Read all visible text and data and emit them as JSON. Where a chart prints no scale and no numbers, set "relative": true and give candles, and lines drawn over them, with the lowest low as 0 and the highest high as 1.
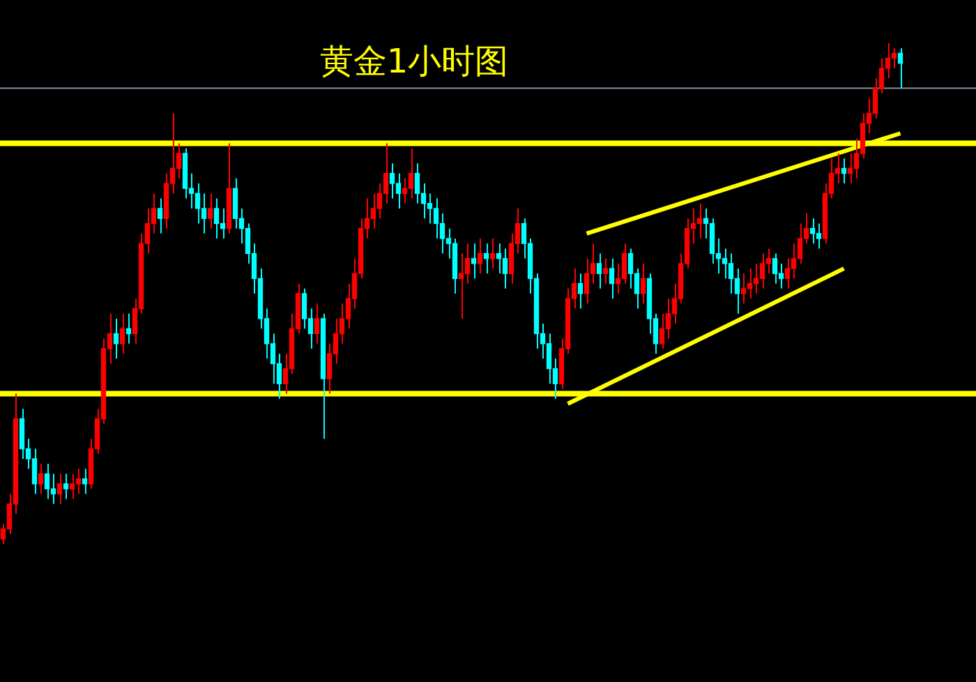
{
  "chart_data": {
    "type": "candlestick",
    "title": "黄金1小时图",
    "relative": true,
    "categories": [
      null,
      null,
      null,
      null,
      null,
      null,
      null,
      null,
      null,
      null,
      null,
      null,
      null,
      null,
      null,
      null,
      null,
      null,
      null,
      null,
      null,
      null,
      null,
      null,
      null,
      null,
      null,
      null,
      null,
      null,
      null,
      null,
      null,
      null,
      null,
      null,
      null,
      null,
      null,
      null,
      null,
      null,
      null,
      null,
      null,
      null,
      null,
      null,
      null,
      null,
      null,
      null,
      null,
      null,
      null,
      null,
      null,
      null,
      null,
      null,
      null,
      null,
      null,
      null,
      null,
      null,
      null,
      null,
      null,
      null,
      null,
      null,
      null,
      null,
      null,
      null,
      null,
      null,
      null,
      null,
      null,
      null,
      null,
      null,
      null,
      null,
      null,
      null,
      null,
      null,
      null,
      null,
      null,
      null,
      null,
      null,
      null,
      null,
      null,
      null,
      null,
      null,
      null,
      null,
      null,
      null,
      null,
      null,
      null,
      null,
      null,
      null,
      null,
      null,
      null,
      null,
      null,
      null,
      null,
      null,
      null,
      null,
      null,
      null,
      null,
      null,
      null,
      null,
      null,
      null,
      null,
      null,
      null,
      null,
      null,
      null,
      null,
      null,
      null,
      null,
      null,
      null,
      null,
      null
    ],
    "ohlc": [
      [
        0.01,
        0.04,
        0,
        0.03
      ],
      [
        0.03,
        0.1,
        0.02,
        0.08
      ],
      [
        0.08,
        0.3,
        0.06,
        0.25
      ],
      [
        0.25,
        0.27,
        0.17,
        0.19
      ],
      [
        0.19,
        0.21,
        0.15,
        0.17
      ],
      [
        0.17,
        0.19,
        0.1,
        0.12
      ],
      [
        0.12,
        0.16,
        0.1,
        0.14
      ],
      [
        0.14,
        0.16,
        0.09,
        0.11
      ],
      [
        0.11,
        0.14,
        0.08,
        0.1
      ],
      [
        0.1,
        0.14,
        0.08,
        0.12
      ],
      [
        0.12,
        0.14,
        0.09,
        0.11
      ],
      [
        0.11,
        0.14,
        0.09,
        0.12
      ],
      [
        0.12,
        0.15,
        0.1,
        0.13
      ],
      [
        0.13,
        0.15,
        0.1,
        0.12
      ],
      [
        0.12,
        0.21,
        0.11,
        0.19
      ],
      [
        0.19,
        0.27,
        0.18,
        0.25
      ],
      [
        0.25,
        0.41,
        0.24,
        0.39
      ],
      [
        0.39,
        0.46,
        0.36,
        0.42
      ],
      [
        0.42,
        0.45,
        0.37,
        0.4
      ],
      [
        0.4,
        0.46,
        0.38,
        0.43
      ],
      [
        0.43,
        0.46,
        0.4,
        0.42
      ],
      [
        0.42,
        0.49,
        0.4,
        0.47
      ],
      [
        0.47,
        0.62,
        0.46,
        0.6
      ],
      [
        0.6,
        0.67,
        0.58,
        0.64
      ],
      [
        0.64,
        0.7,
        0.62,
        0.67
      ],
      [
        0.67,
        0.69,
        0.62,
        0.65
      ],
      [
        0.65,
        0.74,
        0.63,
        0.72
      ],
      [
        0.72,
        0.86,
        0.7,
        0.75
      ],
      [
        0.75,
        0.8,
        0.73,
        0.78
      ],
      [
        0.78,
        0.79,
        0.69,
        0.71
      ],
      [
        0.71,
        0.74,
        0.67,
        0.7
      ],
      [
        0.7,
        0.72,
        0.64,
        0.67
      ],
      [
        0.67,
        0.7,
        0.62,
        0.65
      ],
      [
        0.65,
        0.7,
        0.63,
        0.67
      ],
      [
        0.67,
        0.69,
        0.61,
        0.64
      ],
      [
        0.64,
        0.67,
        0.61,
        0.63
      ],
      [
        0.63,
        0.8,
        0.62,
        0.71
      ],
      [
        0.71,
        0.73,
        0.63,
        0.65
      ],
      [
        0.65,
        0.67,
        0.6,
        0.63
      ],
      [
        0.63,
        0.64,
        0.56,
        0.58
      ],
      [
        0.58,
        0.6,
        0.5,
        0.53
      ],
      [
        0.53,
        0.55,
        0.43,
        0.45
      ],
      [
        0.45,
        0.47,
        0.37,
        0.4
      ],
      [
        0.4,
        0.42,
        0.32,
        0.36
      ],
      [
        0.36,
        0.38,
        0.29,
        0.32
      ],
      [
        0.32,
        0.38,
        0.3,
        0.35
      ],
      [
        0.35,
        0.46,
        0.34,
        0.43
      ],
      [
        0.43,
        0.52,
        0.42,
        0.5
      ],
      [
        0.5,
        0.51,
        0.43,
        0.45
      ],
      [
        0.45,
        0.47,
        0.39,
        0.42
      ],
      [
        0.42,
        0.48,
        0.4,
        0.45
      ],
      [
        0.45,
        0.46,
        0.21,
        0.33
      ],
      [
        0.33,
        0.4,
        0.3,
        0.38
      ],
      [
        0.38,
        0.45,
        0.36,
        0.42
      ],
      [
        0.42,
        0.48,
        0.4,
        0.45
      ],
      [
        0.45,
        0.52,
        0.43,
        0.49
      ],
      [
        0.49,
        0.57,
        0.47,
        0.54
      ],
      [
        0.54,
        0.65,
        0.53,
        0.63
      ],
      [
        0.63,
        0.69,
        0.61,
        0.65
      ],
      [
        0.65,
        0.7,
        0.63,
        0.67
      ],
      [
        0.67,
        0.72,
        0.65,
        0.7
      ],
      [
        0.7,
        0.8,
        0.68,
        0.74
      ],
      [
        0.74,
        0.76,
        0.69,
        0.72
      ],
      [
        0.72,
        0.74,
        0.67,
        0.7
      ],
      [
        0.7,
        0.73,
        0.68,
        0.71
      ],
      [
        0.71,
        0.79,
        0.69,
        0.74
      ],
      [
        0.74,
        0.76,
        0.68,
        0.7
      ],
      [
        0.7,
        0.72,
        0.65,
        0.68
      ],
      [
        0.68,
        0.7,
        0.64,
        0.67
      ],
      [
        0.67,
        0.69,
        0.61,
        0.64
      ],
      [
        0.64,
        0.66,
        0.58,
        0.61
      ],
      [
        0.61,
        0.63,
        0.57,
        0.6
      ],
      [
        0.6,
        0.61,
        0.5,
        0.53
      ],
      [
        0.53,
        0.58,
        0.45,
        0.54
      ],
      [
        0.54,
        0.6,
        0.52,
        0.57
      ],
      [
        0.57,
        0.6,
        0.53,
        0.56
      ],
      [
        0.56,
        0.61,
        0.54,
        0.58
      ],
      [
        0.58,
        0.6,
        0.54,
        0.57
      ],
      [
        0.57,
        0.61,
        0.55,
        0.58
      ],
      [
        0.58,
        0.6,
        0.54,
        0.57
      ],
      [
        0.57,
        0.59,
        0.51,
        0.54
      ],
      [
        0.54,
        0.62,
        0.52,
        0.6
      ],
      [
        0.6,
        0.67,
        0.58,
        0.64
      ],
      [
        0.64,
        0.65,
        0.57,
        0.6
      ],
      [
        0.6,
        0.61,
        0.5,
        0.53
      ],
      [
        0.53,
        0.54,
        0.39,
        0.42
      ],
      [
        0.42,
        0.44,
        0.37,
        0.4
      ],
      [
        0.4,
        0.42,
        0.32,
        0.35
      ],
      [
        0.35,
        0.37,
        0.29,
        0.32
      ],
      [
        0.32,
        0.41,
        0.31,
        0.39
      ],
      [
        0.39,
        0.51,
        0.38,
        0.49
      ],
      [
        0.49,
        0.55,
        0.47,
        0.52
      ],
      [
        0.52,
        0.54,
        0.47,
        0.5
      ],
      [
        0.5,
        0.57,
        0.48,
        0.54
      ],
      [
        0.54,
        0.6,
        0.52,
        0.56
      ],
      [
        0.56,
        0.58,
        0.51,
        0.54
      ],
      [
        0.54,
        0.57,
        0.52,
        0.55
      ],
      [
        0.55,
        0.57,
        0.49,
        0.52
      ],
      [
        0.52,
        0.56,
        0.5,
        0.53
      ],
      [
        0.53,
        0.6,
        0.52,
        0.58
      ],
      [
        0.58,
        0.59,
        0.51,
        0.54
      ],
      [
        0.54,
        0.55,
        0.47,
        0.5
      ],
      [
        0.5,
        0.56,
        0.48,
        0.53
      ],
      [
        0.53,
        0.54,
        0.42,
        0.45
      ],
      [
        0.45,
        0.46,
        0.38,
        0.4
      ],
      [
        0.4,
        0.46,
        0.39,
        0.43
      ],
      [
        0.43,
        0.49,
        0.41,
        0.46
      ],
      [
        0.46,
        0.52,
        0.44,
        0.49
      ],
      [
        0.49,
        0.58,
        0.48,
        0.56
      ],
      [
        0.56,
        0.65,
        0.55,
        0.63
      ],
      [
        0.63,
        0.67,
        0.6,
        0.64
      ],
      [
        0.64,
        0.68,
        0.61,
        0.65
      ],
      [
        0.65,
        0.67,
        0.61,
        0.64
      ],
      [
        0.64,
        0.65,
        0.56,
        0.58
      ],
      [
        0.58,
        0.61,
        0.54,
        0.57
      ],
      [
        0.57,
        0.59,
        0.53,
        0.56
      ],
      [
        0.56,
        0.58,
        0.5,
        0.53
      ],
      [
        0.53,
        0.55,
        0.46,
        0.5
      ],
      [
        0.5,
        0.54,
        0.48,
        0.51
      ],
      [
        0.51,
        0.55,
        0.49,
        0.52
      ],
      [
        0.52,
        0.56,
        0.5,
        0.53
      ],
      [
        0.53,
        0.58,
        0.51,
        0.56
      ],
      [
        0.56,
        0.59,
        0.54,
        0.57
      ],
      [
        0.57,
        0.58,
        0.52,
        0.54
      ],
      [
        0.54,
        0.56,
        0.51,
        0.53
      ],
      [
        0.53,
        0.57,
        0.51,
        0.55
      ],
      [
        0.55,
        0.6,
        0.53,
        0.57
      ],
      [
        0.57,
        0.64,
        0.56,
        0.61
      ],
      [
        0.61,
        0.66,
        0.6,
        0.63
      ],
      [
        0.63,
        0.65,
        0.6,
        0.62
      ],
      [
        0.62,
        0.64,
        0.59,
        0.61
      ],
      [
        0.61,
        0.72,
        0.6,
        0.7
      ],
      [
        0.7,
        0.77,
        0.69,
        0.74
      ],
      [
        0.74,
        0.78,
        0.72,
        0.75
      ],
      [
        0.75,
        0.77,
        0.72,
        0.74
      ],
      [
        0.74,
        0.78,
        0.72,
        0.75
      ],
      [
        0.75,
        0.81,
        0.73,
        0.78
      ],
      [
        0.78,
        0.86,
        0.77,
        0.84
      ],
      [
        0.84,
        0.89,
        0.82,
        0.86
      ],
      [
        0.86,
        0.93,
        0.85,
        0.91
      ],
      [
        0.91,
        0.97,
        0.9,
        0.95
      ],
      [
        0.95,
        1.0,
        0.93,
        0.97
      ],
      [
        0.97,
        0.99,
        0.95,
        0.98
      ],
      [
        0.98,
        0.99,
        0.91,
        0.96
      ]
    ],
    "series": [
      {
        "type": "line",
        "color": "#ffff00",
        "values": [
          null,
          null,
          null,
          null,
          null,
          null,
          null,
          null,
          null,
          null,
          null,
          null,
          null,
          null,
          null,
          null,
          null,
          null,
          null,
          null,
          null,
          null,
          null,
          null,
          null,
          null,
          null,
          null,
          null,
          null,
          null,
          null,
          null,
          null,
          null,
          null,
          null,
          null,
          null,
          null,
          null,
          null,
          null,
          null,
          null,
          null,
          null,
          null,
          null,
          null,
          null,
          null,
          null,
          null,
          null,
          null,
          null,
          null,
          null,
          null,
          null,
          null,
          null,
          null,
          null,
          null,
          null,
          null,
          null,
          null,
          null,
          null,
          null,
          null,
          null,
          null,
          null,
          null,
          null,
          null,
          null,
          null,
          null,
          null,
          null,
          null,
          null,
          null,
          null,
          null,
          null,
          null,
          null,
          0.62,
          null,
          null,
          null,
          null,
          null,
          null,
          null,
          null,
          null,
          null,
          null,
          null,
          null,
          null,
          null,
          null,
          null,
          null,
          null,
          null,
          null,
          null,
          null,
          null,
          null,
          null,
          null,
          null,
          null,
          null,
          null,
          null,
          null,
          null,
          null,
          null,
          null,
          null,
          null,
          null,
          null,
          null,
          null,
          null,
          null,
          null,
          null,
          null,
          null,
          0.82
        ]
      },
      {
        "type": "line",
        "color": "#ffff00",
        "values": [
          null,
          null,
          null,
          null,
          null,
          null,
          null,
          null,
          null,
          null,
          null,
          null,
          null,
          null,
          null,
          null,
          null,
          null,
          null,
          null,
          null,
          null,
          null,
          null,
          null,
          null,
          null,
          null,
          null,
          null,
          null,
          null,
          null,
          null,
          null,
          null,
          null,
          null,
          null,
          null,
          null,
          null,
          null,
          null,
          null,
          null,
          null,
          null,
          null,
          null,
          null,
          null,
          null,
          null,
          null,
          null,
          null,
          null,
          null,
          null,
          null,
          null,
          null,
          null,
          null,
          null,
          null,
          null,
          null,
          null,
          null,
          null,
          null,
          null,
          null,
          null,
          null,
          null,
          null,
          null,
          null,
          null,
          null,
          null,
          null,
          null,
          null,
          null,
          null,
          null,
          0.28,
          null,
          null,
          null,
          null,
          null,
          null,
          null,
          null,
          null,
          null,
          null,
          null,
          null,
          null,
          null,
          null,
          null,
          null,
          null,
          null,
          null,
          null,
          null,
          null,
          null,
          null,
          null,
          null,
          null,
          null,
          null,
          null,
          null,
          null,
          null,
          null,
          null,
          null,
          null,
          null,
          null,
          null,
          null,
          0.55,
          null,
          null,
          null,
          null,
          null,
          null,
          null,
          null,
          null
        ]
      }
    ],
    "ref_lines": [
      {
        "axis": "y",
        "value": 0.8,
        "color": "#ffff00"
      },
      {
        "axis": "y",
        "value": 0.3,
        "color": "#ffff00"
      },
      {
        "axis": "y",
        "value": 0.91,
        "color": "#8090a0"
      }
    ]
  }
}
